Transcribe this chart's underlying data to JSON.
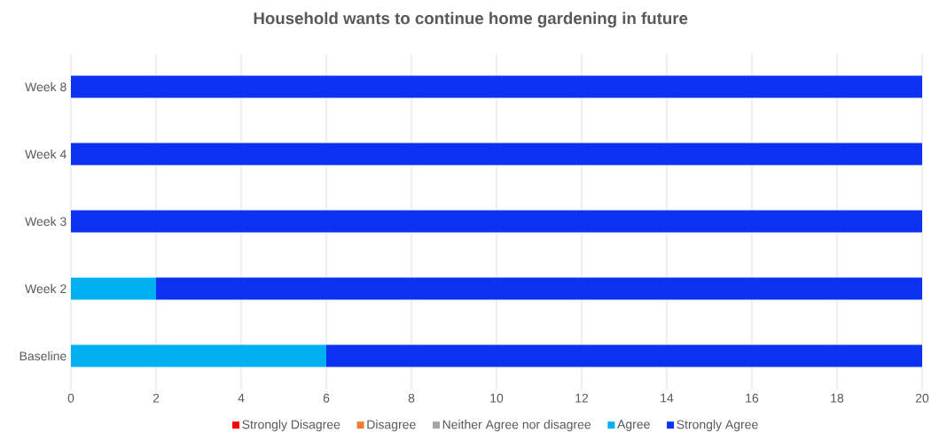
{
  "chart_data": {
    "type": "bar",
    "orientation": "horizontal",
    "stacked": true,
    "title": "Household wants to continue home gardening in future",
    "categories": [
      "Week 8",
      "Week 4",
      "Week 3",
      "Week 2",
      "Baseline"
    ],
    "series": [
      {
        "name": "Strongly Disagree",
        "color": "#ff0000",
        "values": [
          0,
          0,
          0,
          0,
          0
        ]
      },
      {
        "name": "Disagree",
        "color": "#ed7d31",
        "values": [
          0,
          0,
          0,
          0,
          0
        ]
      },
      {
        "name": "Neither Agree nor disagree",
        "color": "#a5a5a5",
        "values": [
          0,
          0,
          0,
          0,
          0
        ]
      },
      {
        "name": "Agree",
        "color": "#00b0f0",
        "values": [
          0,
          0,
          0,
          2,
          6
        ]
      },
      {
        "name": "Strongly Agree",
        "color": "#0a32f0",
        "values": [
          20,
          20,
          20,
          18,
          14
        ]
      }
    ],
    "xlim": [
      0,
      20
    ],
    "xticks": [
      0,
      2,
      4,
      6,
      8,
      10,
      12,
      14,
      16,
      18,
      20
    ],
    "grid": "x",
    "legend": "bottom"
  }
}
